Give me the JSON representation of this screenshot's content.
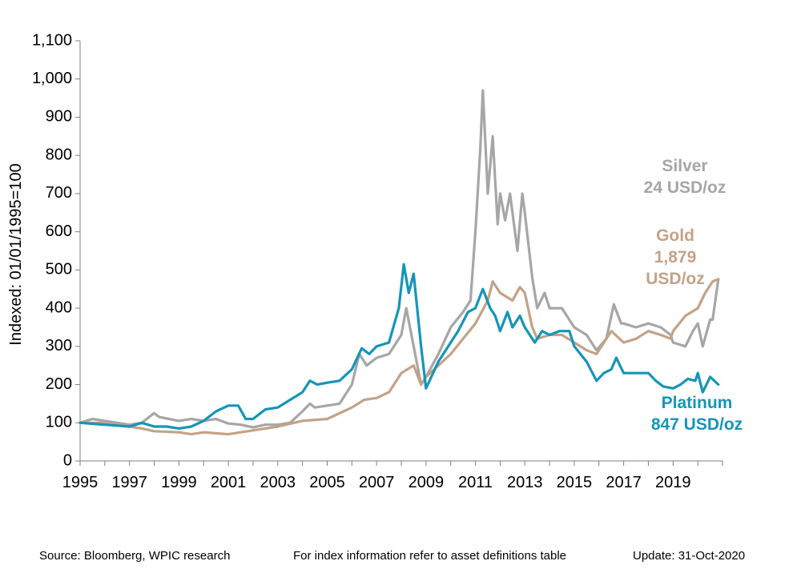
{
  "chart_data": {
    "type": "line",
    "ylabel": "Indexed: 01/01/1995=100",
    "ylim": [
      0,
      1100
    ],
    "y_ticks": [
      "0",
      "100",
      "200",
      "300",
      "400",
      "500",
      "600",
      "700",
      "800",
      "900",
      "1,000",
      "1,100"
    ],
    "x_ticks": [
      "1995",
      "1997",
      "1999",
      "2001",
      "2003",
      "2005",
      "2007",
      "2009",
      "2011",
      "2013",
      "2015",
      "2017",
      "2019"
    ],
    "xlim": [
      1995,
      2021
    ],
    "series": [
      {
        "name": "Silver",
        "color": "#a6a6a6",
        "label_lines": [
          "Silver",
          "24 USD/oz"
        ],
        "x": [
          1995.0,
          1995.5,
          1996.0,
          1996.5,
          1997.0,
          1997.5,
          1998.0,
          1998.2,
          1998.6,
          1999.0,
          1999.5,
          2000.0,
          2000.5,
          2001.0,
          2001.5,
          2002.0,
          2002.5,
          2003.0,
          2003.5,
          2004.0,
          2004.3,
          2004.5,
          2005.0,
          2005.5,
          2006.0,
          2006.3,
          2006.6,
          2007.0,
          2007.5,
          2008.0,
          2008.2,
          2008.5,
          2008.8,
          2009.0,
          2009.5,
          2010.0,
          2010.5,
          2010.8,
          2011.0,
          2011.2,
          2011.3,
          2011.5,
          2011.7,
          2011.9,
          2012.0,
          2012.2,
          2012.4,
          2012.7,
          2012.9,
          2013.0,
          2013.3,
          2013.5,
          2013.8,
          2014.0,
          2014.5,
          2015.0,
          2015.5,
          2015.9,
          2016.3,
          2016.6,
          2016.9,
          2017.0,
          2017.5,
          2018.0,
          2018.5,
          2018.9,
          2019.0,
          2019.5,
          2019.8,
          2020.0,
          2020.2,
          2020.5,
          2020.6,
          2020.83
        ],
        "values": [
          100,
          110,
          105,
          100,
          95,
          100,
          125,
          115,
          110,
          105,
          110,
          105,
          110,
          98,
          95,
          88,
          95,
          95,
          100,
          130,
          150,
          140,
          145,
          150,
          200,
          280,
          250,
          270,
          280,
          330,
          400,
          300,
          200,
          220,
          280,
          350,
          390,
          420,
          600,
          820,
          970,
          700,
          850,
          620,
          700,
          630,
          700,
          550,
          700,
          650,
          480,
          400,
          440,
          400,
          400,
          350,
          330,
          290,
          320,
          410,
          360,
          360,
          350,
          360,
          350,
          330,
          310,
          300,
          340,
          360,
          300,
          370,
          370,
          476
        ]
      },
      {
        "name": "Gold",
        "color": "#c4a287",
        "label_lines": [
          "Gold",
          "1,879",
          "USD/oz"
        ],
        "x": [
          1995.0,
          1996.0,
          1997.0,
          1997.5,
          1998.0,
          1999.0,
          1999.5,
          2000.0,
          2001.0,
          2002.0,
          2003.0,
          2004.0,
          2005.0,
          2006.0,
          2006.5,
          2007.0,
          2007.5,
          2008.0,
          2008.5,
          2008.8,
          2009.0,
          2009.5,
          2010.0,
          2010.5,
          2011.0,
          2011.5,
          2011.7,
          2012.0,
          2012.5,
          2012.8,
          2013.0,
          2013.3,
          2013.5,
          2014.0,
          2014.5,
          2015.0,
          2015.5,
          2015.9,
          2016.5,
          2017.0,
          2017.5,
          2018.0,
          2018.5,
          2018.9,
          2019.0,
          2019.5,
          2020.0,
          2020.3,
          2020.6,
          2020.83
        ],
        "values": [
          100,
          100,
          90,
          85,
          78,
          75,
          70,
          75,
          70,
          80,
          90,
          105,
          110,
          140,
          160,
          165,
          180,
          230,
          250,
          200,
          220,
          250,
          280,
          320,
          360,
          420,
          470,
          440,
          420,
          455,
          440,
          350,
          320,
          330,
          330,
          310,
          290,
          280,
          340,
          310,
          320,
          340,
          330,
          320,
          340,
          380,
          400,
          440,
          470,
          476
        ]
      },
      {
        "name": "Platinum",
        "color": "#1595b8",
        "label_lines": [
          "Platinum",
          "847 USD/oz"
        ],
        "x": [
          1995.0,
          1996.0,
          1997.0,
          1997.5,
          1998.0,
          1998.5,
          1999.0,
          1999.5,
          2000.0,
          2000.5,
          2001.0,
          2001.4,
          2001.7,
          2002.0,
          2002.5,
          2003.0,
          2003.5,
          2004.0,
          2004.3,
          2004.6,
          2005.0,
          2005.5,
          2006.0,
          2006.4,
          2006.7,
          2007.0,
          2007.5,
          2007.9,
          2008.1,
          2008.3,
          2008.5,
          2008.8,
          2009.0,
          2009.5,
          2010.0,
          2010.3,
          2010.7,
          2011.0,
          2011.3,
          2011.6,
          2011.8,
          2012.0,
          2012.3,
          2012.5,
          2012.8,
          2013.0,
          2013.4,
          2013.7,
          2014.0,
          2014.4,
          2014.8,
          2015.0,
          2015.5,
          2015.9,
          2016.2,
          2016.5,
          2016.7,
          2017.0,
          2017.5,
          2018.0,
          2018.3,
          2018.6,
          2019.0,
          2019.3,
          2019.6,
          2019.9,
          2020.0,
          2020.2,
          2020.5,
          2020.83
        ],
        "values": [
          100,
          95,
          90,
          100,
          90,
          90,
          85,
          90,
          105,
          130,
          145,
          145,
          110,
          110,
          135,
          140,
          160,
          180,
          210,
          200,
          205,
          210,
          240,
          295,
          280,
          300,
          310,
          400,
          515,
          440,
          490,
          300,
          190,
          260,
          310,
          340,
          390,
          400,
          450,
          400,
          380,
          340,
          390,
          350,
          380,
          350,
          310,
          340,
          330,
          340,
          340,
          300,
          260,
          210,
          230,
          240,
          270,
          230,
          230,
          230,
          210,
          195,
          190,
          200,
          215,
          210,
          230,
          180,
          220,
          200
        ]
      }
    ]
  },
  "footer": {
    "source": "Source: Bloomberg, WPIC research",
    "note": "For index information refer to asset definitions table",
    "update": "Update: 31-Oct-2020"
  }
}
